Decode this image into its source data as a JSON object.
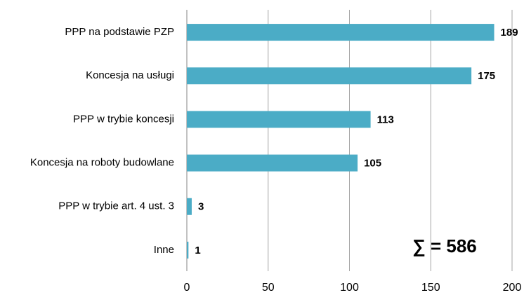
{
  "chart_data": {
    "type": "bar",
    "orientation": "horizontal",
    "categories": [
      "PPP na podstawie PZP",
      "Koncesja na usługi",
      "PPP w trybie koncesji",
      "Koncesja na roboty budowlane",
      "PPP w trybie art. 4 ust. 3",
      "Inne"
    ],
    "values": [
      189,
      175,
      113,
      105,
      3,
      1
    ],
    "color": "#4bacc6",
    "xlim": [
      0,
      200
    ],
    "xticks": [
      0,
      50,
      100,
      150,
      200
    ],
    "grid": true,
    "annotation": "∑ = 586"
  }
}
